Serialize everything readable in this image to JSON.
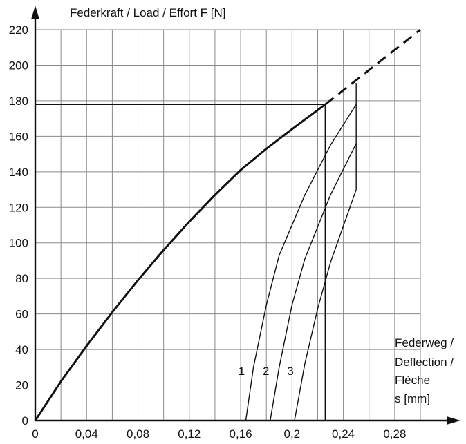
{
  "chart_data": {
    "type": "line",
    "ylabel": "Federkraft / Load / Effort   F [N]",
    "xlabel_lines": [
      "Federweg /",
      "Deflection /",
      "Flèche",
      "s [mm]"
    ],
    "xlim": [
      0,
      0.3
    ],
    "ylim": [
      0,
      220
    ],
    "x_ticks": [
      0,
      0.04,
      0.08,
      0.12,
      0.16,
      0.2,
      0.24,
      0.28
    ],
    "x_tick_labels": [
      "0",
      "0,04",
      "0,08",
      "0,12",
      "0,16",
      "0,2",
      "0,24",
      "0,28"
    ],
    "y_ticks": [
      0,
      20,
      40,
      60,
      80,
      100,
      120,
      140,
      160,
      180,
      200,
      220
    ],
    "y_tick_labels": [
      "0",
      "20",
      "40",
      "60",
      "80",
      "100",
      "120",
      "140",
      "160",
      "180",
      "200",
      "220"
    ],
    "x_grid_step": 0.02,
    "y_grid_step": 20,
    "grid": true,
    "series": [
      {
        "style": "thick",
        "x": [
          0,
          0.02,
          0.04,
          0.06,
          0.08,
          0.1,
          0.12,
          0.14,
          0.16,
          0.18,
          0.2,
          0.226
        ],
        "y": [
          0,
          22,
          42,
          61,
          79,
          96,
          112,
          127,
          141,
          153,
          164,
          178
        ]
      },
      {
        "style": "dashed",
        "x": [
          0.226,
          0.3
        ],
        "y": [
          178,
          220
        ]
      },
      {
        "name": "1",
        "style": "thin",
        "x": [
          0.164,
          0.17,
          0.18,
          0.19,
          0.21,
          0.23,
          0.25
        ],
        "y": [
          0,
          30,
          65,
          93,
          127,
          155,
          178
        ]
      },
      {
        "name": "2",
        "style": "thin",
        "x": [
          0.183,
          0.19,
          0.2,
          0.21,
          0.23,
          0.25
        ],
        "y": [
          0,
          30,
          65,
          91,
          127,
          156
        ]
      },
      {
        "name": "3",
        "style": "thin",
        "x": [
          0.202,
          0.21,
          0.22,
          0.23,
          0.25
        ],
        "y": [
          0,
          32,
          63,
          89,
          130
        ]
      }
    ],
    "annotations": [
      {
        "type": "hline",
        "y": 178,
        "x_from": 0,
        "x_to": 0.226
      },
      {
        "type": "vline",
        "x": 0.226,
        "y_from": 0,
        "y_to": 178
      },
      {
        "type": "vline",
        "x": 0.25,
        "y_from": 130,
        "y_to": 190
      }
    ]
  }
}
